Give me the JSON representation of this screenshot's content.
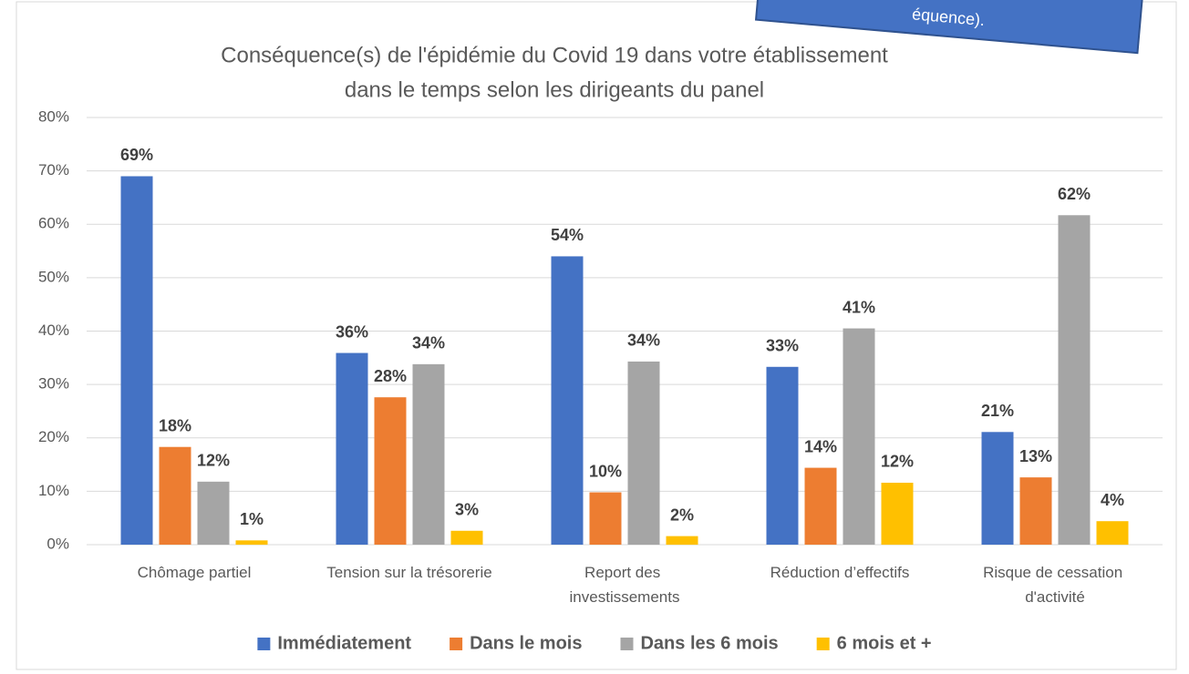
{
  "chart_data": {
    "type": "bar",
    "title": "Conséquence(s) de l'épidémie du Covid 19 dans votre établissement",
    "subtitle": "dans le temps selon les dirigeants du panel",
    "annotation": "équence).",
    "categories": [
      "Chômage partiel",
      "Tension sur la trésorerie",
      "Report des investissements",
      "Réduction d’effectifs",
      "Risque de cessation d'activité"
    ],
    "series": [
      {
        "name": "Immédiatement",
        "color": "#4472c4",
        "values": [
          69,
          35.9,
          54,
          33.3,
          21.1
        ],
        "value_labels": [
          "69%",
          "36%",
          "54%",
          "33%",
          "21%"
        ]
      },
      {
        "name": "Dans le mois",
        "color": "#ed7d31",
        "values": [
          18.3,
          27.6,
          9.8,
          14.4,
          12.6
        ],
        "value_labels": [
          "18%",
          "28%",
          "10%",
          "14%",
          "13%"
        ]
      },
      {
        "name": "Dans les 6 mois",
        "color": "#a5a5a5",
        "values": [
          11.8,
          33.8,
          34.3,
          40.5,
          61.7
        ],
        "value_labels": [
          "12%",
          "34%",
          "34%",
          "41%",
          "62%"
        ]
      },
      {
        "name": "6 mois et +",
        "color": "#ffc000",
        "values": [
          0.8,
          2.6,
          1.6,
          11.6,
          4.4
        ],
        "value_labels": [
          "1%",
          "3%",
          "2%",
          "12%",
          "4%"
        ]
      }
    ],
    "ylim": [
      0,
      80
    ],
    "yticks": [
      {
        "value": 0,
        "label": "0%"
      },
      {
        "value": 10,
        "label": "10%"
      },
      {
        "value": 20,
        "label": "20%"
      },
      {
        "value": 30,
        "label": "30%"
      },
      {
        "value": 40,
        "label": "40%"
      },
      {
        "value": 50,
        "label": "50%"
      },
      {
        "value": 60,
        "label": "60%"
      },
      {
        "value": 70,
        "label": "70%"
      },
      {
        "value": 80,
        "label": "80%"
      }
    ],
    "grid": true,
    "legend": "bottom"
  }
}
